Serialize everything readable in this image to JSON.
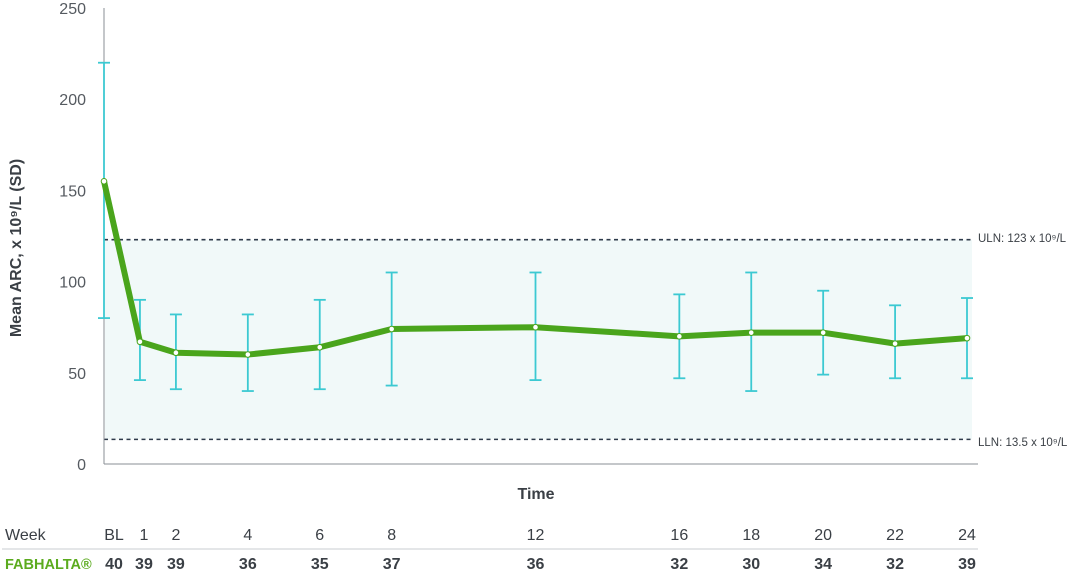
{
  "chart_data": {
    "type": "line",
    "ylabel": "Mean ARC, x 10⁹/L (SD)",
    "xlabel": "Time",
    "ylim": [
      0,
      250
    ],
    "yticks": [
      0,
      50,
      100,
      150,
      200,
      250
    ],
    "grid": false,
    "colors": {
      "line": "#4aa51c",
      "error_bar": "#3cc9d2",
      "band": "#f1f9f9",
      "ref_line": "#2e3a4a"
    },
    "reference_lines": [
      {
        "label": "ULN: 123 x 10⁹/L",
        "value": 123
      },
      {
        "label": "LLN: 13.5 x 10⁹/L",
        "value": 13.5
      }
    ],
    "categories": [
      "BL",
      "1",
      "2",
      "4",
      "6",
      "8",
      "12",
      "16",
      "18",
      "20",
      "22",
      "24"
    ],
    "x": [
      0,
      1,
      2,
      4,
      6,
      8,
      12,
      16,
      18,
      20,
      22,
      24
    ],
    "series": [
      {
        "values": [
          155,
          67,
          61,
          60,
          64,
          74,
          75,
          70,
          72,
          72,
          66,
          69
        ],
        "error_low": [
          80,
          46,
          41,
          40,
          41,
          43,
          46,
          47,
          40,
          49,
          47,
          47
        ],
        "error_high": [
          220,
          90,
          82,
          82,
          90,
          105,
          105,
          93,
          105,
          95,
          87,
          91
        ]
      }
    ]
  },
  "table": {
    "header_label": "Week",
    "row_label": "FABHALTA®",
    "weeks": [
      "BL",
      "1",
      "2",
      "4",
      "6",
      "8",
      "12",
      "16",
      "18",
      "20",
      "22",
      "24"
    ],
    "counts": [
      "40",
      "39",
      "39",
      "36",
      "35",
      "37",
      "36",
      "32",
      "30",
      "34",
      "32",
      "39"
    ]
  }
}
